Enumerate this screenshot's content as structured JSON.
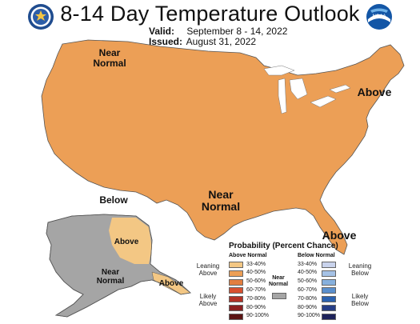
{
  "header": {
    "title": "8-14 Day Temperature Outlook",
    "valid_label": "Valid:",
    "valid_value": "September 8 - 14, 2022",
    "issued_label": "Issued:",
    "issued_value": "August 31, 2022"
  },
  "logos": {
    "left": "Department of Commerce seal",
    "right_text": "NOAA"
  },
  "colors": {
    "above_33_40": "#f3c784",
    "above_40_50": "#ec9f56",
    "above_50_60": "#e37e3f",
    "above_60_70": "#d8502f",
    "above_70_80": "#b23226",
    "above_80_90": "#8c2020",
    "above_90_100": "#5c1414",
    "near_normal": "#a5a5a5",
    "below_33_40": "#c9d3ec",
    "below_40_50": "#a5c2e6",
    "below_50_60": "#86b0dd",
    "below_60_70": "#5a8fcd",
    "below_70_80": "#2b62b0",
    "below_80_90": "#253d86",
    "below_90_100": "#1d225a"
  },
  "map_labels": {
    "near_normal_nw": "Near\nNormal",
    "above_ne": "Above",
    "below_sw": "Below",
    "near_normal_south": "Near\nNormal",
    "above_fl": "Above",
    "above_ak": "Above",
    "near_normal_ak": "Near\nNormal",
    "above_ak_se": "Above"
  },
  "legend": {
    "title": "Probability (Percent Chance)",
    "above_header": "Above Normal",
    "below_header": "Below Normal",
    "near_normal": "Near\nNormal",
    "leaning_above": "Leaning\nAbove",
    "likely_above": "Likely\nAbove",
    "leaning_below": "Leaning\nBelow",
    "likely_below": "Likely\nBelow",
    "ranges": [
      "33-40%",
      "40-50%",
      "50-60%",
      "60-70%",
      "70-80%",
      "80-90%",
      "90-100%"
    ]
  }
}
